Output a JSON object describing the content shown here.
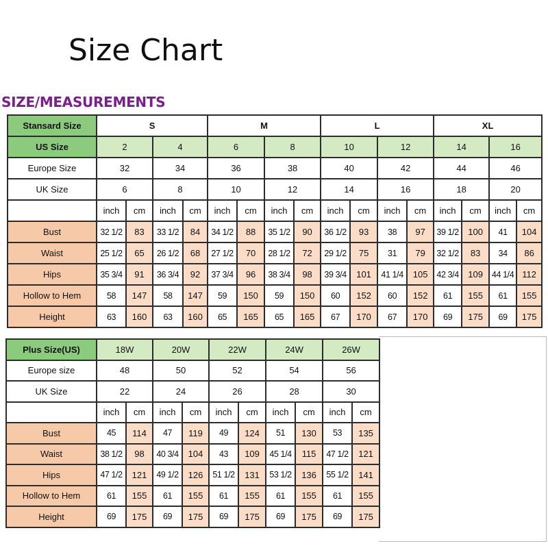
{
  "title": "Size Chart",
  "subtitle": "SIZE/MEASUREMENTS",
  "colors": {
    "label_green": "#8ccb7d",
    "size_green": "#d3eac3",
    "label_peach": "#f6c9a8",
    "cm_peach": "#fbdcc6",
    "subtitle_purple": "#7b1f8f"
  },
  "standard": {
    "header_label": "Stansard Size",
    "groups": [
      "S",
      "M",
      "L",
      "XL"
    ],
    "us_label": "US Size",
    "us": [
      "2",
      "4",
      "6",
      "8",
      "10",
      "12",
      "14",
      "16"
    ],
    "europe_label": "Europe Size",
    "europe": [
      "32",
      "34",
      "36",
      "38",
      "40",
      "42",
      "44",
      "46"
    ],
    "uk_label": "UK Size",
    "uk": [
      "6",
      "8",
      "10",
      "12",
      "14",
      "16",
      "18",
      "20"
    ],
    "units": [
      "inch",
      "cm"
    ],
    "measurements": [
      {
        "label": "Bust",
        "values": [
          [
            "32 1/2",
            "83"
          ],
          [
            "33 1/2",
            "84"
          ],
          [
            "34 1/2",
            "88"
          ],
          [
            "35 1/2",
            "90"
          ],
          [
            "36 1/2",
            "93"
          ],
          [
            "38",
            "97"
          ],
          [
            "39 1/2",
            "100"
          ],
          [
            "41",
            "104"
          ]
        ]
      },
      {
        "label": "Waist",
        "values": [
          [
            "25 1/2",
            "65"
          ],
          [
            "26 1/2",
            "68"
          ],
          [
            "27 1/2",
            "70"
          ],
          [
            "28 1/2",
            "72"
          ],
          [
            "29 1/2",
            "75"
          ],
          [
            "31",
            "79"
          ],
          [
            "32 1/2",
            "83"
          ],
          [
            "34",
            "86"
          ]
        ]
      },
      {
        "label": "Hips",
        "values": [
          [
            "35 3/4",
            "91"
          ],
          [
            "36 3/4",
            "92"
          ],
          [
            "37 3/4",
            "96"
          ],
          [
            "38 3/4",
            "98"
          ],
          [
            "39 3/4",
            "101"
          ],
          [
            "41 1/4",
            "105"
          ],
          [
            "42 3/4",
            "109"
          ],
          [
            "44 1/4",
            "112"
          ]
        ]
      },
      {
        "label": "Hollow to Hem",
        "values": [
          [
            "58",
            "147"
          ],
          [
            "58",
            "147"
          ],
          [
            "59",
            "150"
          ],
          [
            "59",
            "150"
          ],
          [
            "60",
            "152"
          ],
          [
            "60",
            "152"
          ],
          [
            "61",
            "155"
          ],
          [
            "61",
            "155"
          ]
        ]
      },
      {
        "label": "Height",
        "values": [
          [
            "63",
            "160"
          ],
          [
            "63",
            "160"
          ],
          [
            "65",
            "165"
          ],
          [
            "65",
            "165"
          ],
          [
            "67",
            "170"
          ],
          [
            "67",
            "170"
          ],
          [
            "69",
            "175"
          ],
          [
            "69",
            "175"
          ]
        ]
      }
    ]
  },
  "plus": {
    "header_label": "Plus Size(US)",
    "us": [
      "18W",
      "20W",
      "22W",
      "24W",
      "26W"
    ],
    "europe_label": "Europe size",
    "europe": [
      "48",
      "50",
      "52",
      "54",
      "56"
    ],
    "uk_label": "UK Size",
    "uk": [
      "22",
      "24",
      "26",
      "28",
      "30"
    ],
    "units": [
      "inch",
      "cm"
    ],
    "measurements": [
      {
        "label": "Bust",
        "values": [
          [
            "45",
            "114"
          ],
          [
            "47",
            "119"
          ],
          [
            "49",
            "124"
          ],
          [
            "51",
            "130"
          ],
          [
            "53",
            "135"
          ]
        ]
      },
      {
        "label": "Waist",
        "values": [
          [
            "38 1/2",
            "98"
          ],
          [
            "40 3/4",
            "104"
          ],
          [
            "43",
            "109"
          ],
          [
            "45 1/4",
            "115"
          ],
          [
            "47 1/2",
            "121"
          ]
        ]
      },
      {
        "label": "Hips",
        "values": [
          [
            "47 1/2",
            "121"
          ],
          [
            "49 1/2",
            "126"
          ],
          [
            "51 1/2",
            "131"
          ],
          [
            "53 1/2",
            "136"
          ],
          [
            "55 1/2",
            "141"
          ]
        ]
      },
      {
        "label": "Hollow to Hem",
        "values": [
          [
            "61",
            "155"
          ],
          [
            "61",
            "155"
          ],
          [
            "61",
            "155"
          ],
          [
            "61",
            "155"
          ],
          [
            "61",
            "155"
          ]
        ]
      },
      {
        "label": "Height",
        "values": [
          [
            "69",
            "175"
          ],
          [
            "69",
            "175"
          ],
          [
            "69",
            "175"
          ],
          [
            "69",
            "175"
          ],
          [
            "69",
            "175"
          ]
        ]
      }
    ]
  }
}
